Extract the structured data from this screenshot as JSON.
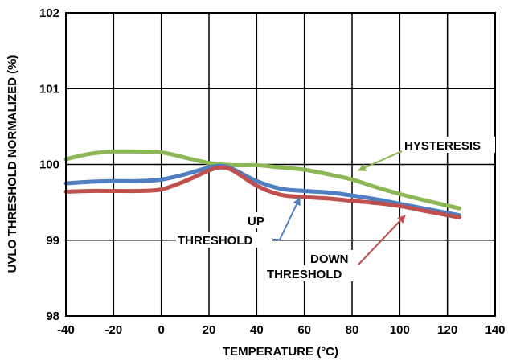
{
  "chart_data": {
    "type": "line",
    "xlabel": "TEMPERATURE (°C)",
    "ylabel": "UVLO THRESHOLD NORMALIZED (%)",
    "xlim": [
      -40,
      140
    ],
    "ylim": [
      98,
      102
    ],
    "xticks": [
      "-40",
      "-20",
      "0",
      "20",
      "40",
      "60",
      "80",
      "100",
      "120",
      "140"
    ],
    "yticks": [
      "98",
      "99",
      "100",
      "101",
      "102"
    ],
    "grid": true,
    "series": [
      {
        "name": "HYSTERESIS",
        "color": "#8DB654",
        "x": [
          -40,
          -30,
          -20,
          -10,
          0,
          10,
          20,
          30,
          40,
          50,
          60,
          70,
          80,
          90,
          100,
          110,
          125
        ],
        "y": [
          100.07,
          100.14,
          100.17,
          100.17,
          100.16,
          100.09,
          100.02,
          99.99,
          99.99,
          99.96,
          99.93,
          99.87,
          99.8,
          99.7,
          99.61,
          99.53,
          99.42
        ]
      },
      {
        "name": "UP THRESHOLD",
        "color": "#4F7EC1",
        "x": [
          -40,
          -30,
          -20,
          -10,
          0,
          10,
          20,
          25,
          30,
          40,
          50,
          60,
          70,
          80,
          90,
          100,
          110,
          125
        ],
        "y": [
          99.75,
          99.77,
          99.78,
          99.78,
          99.8,
          99.87,
          99.96,
          99.98,
          99.94,
          99.78,
          99.68,
          99.65,
          99.63,
          99.59,
          99.54,
          99.48,
          99.42,
          99.33
        ]
      },
      {
        "name": "DOWN THRESHOLD",
        "color": "#C0504D",
        "x": [
          -40,
          -30,
          -20,
          -10,
          0,
          10,
          20,
          25,
          30,
          40,
          50,
          60,
          70,
          80,
          90,
          100,
          110,
          125
        ],
        "y": [
          99.64,
          99.65,
          99.65,
          99.65,
          99.67,
          99.78,
          99.92,
          99.96,
          99.92,
          99.72,
          99.6,
          99.57,
          99.55,
          99.52,
          99.49,
          99.45,
          99.39,
          99.3
        ]
      }
    ],
    "annotations": [
      {
        "text": "HYSTERESIS",
        "series": 0,
        "target_x": 81,
        "target_y": 99.81
      },
      {
        "text": "UP",
        "series": 1,
        "target_x": 58,
        "target_y": 99.64
      },
      {
        "text": "THRESHOLD",
        "series": 1
      },
      {
        "text": "DOWN",
        "series": 2,
        "target_x": 104,
        "target_y": 99.44
      },
      {
        "text": "THRESHOLD",
        "series": 2
      }
    ]
  }
}
